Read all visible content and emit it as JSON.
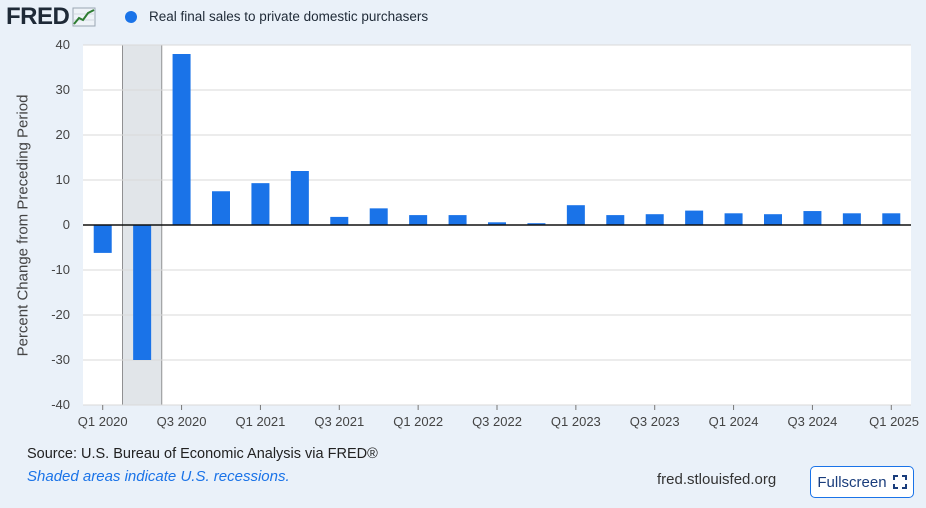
{
  "header": {
    "logo_text": "FRED",
    "logo_icon": "line-chart-icon",
    "legend_label": "Real final sales to private domestic purchasers"
  },
  "colors": {
    "bar": "#1a73e8",
    "recession": "#e1e5e9",
    "background": "#eaf1f9",
    "plot": "#ffffff",
    "grid": "#d9d9d9"
  },
  "footer": {
    "source": "U.S. Bureau of Economic Analysis via FRED®",
    "source_prefix": "Source: ",
    "recession_note": "Shaded areas indicate U.S. recessions.",
    "site": "fred.stlouisfed.org",
    "fullscreen_label": "Fullscreen"
  },
  "chart_data": {
    "type": "bar",
    "title": "",
    "xlabel": "",
    "ylabel": "Percent Change from Preceding Period",
    "ylim": [
      -40,
      40
    ],
    "yticks": [
      40,
      30,
      20,
      10,
      0,
      -10,
      -20,
      -30,
      -40
    ],
    "grid": true,
    "legend": "top-left",
    "x_tick_labels": [
      "Q1 2020",
      "Q3 2020",
      "Q1 2021",
      "Q3 2021",
      "Q1 2022",
      "Q3 2022",
      "Q1 2023",
      "Q3 2023",
      "Q1 2024",
      "Q3 2024",
      "Q1 2025"
    ],
    "recession_periods": [
      [
        "Q2 2020",
        "Q2 2020"
      ]
    ],
    "categories": [
      "Q1 2020",
      "Q2 2020",
      "Q3 2020",
      "Q4 2020",
      "Q1 2021",
      "Q2 2021",
      "Q3 2021",
      "Q4 2021",
      "Q1 2022",
      "Q2 2022",
      "Q3 2022",
      "Q4 2022",
      "Q1 2023",
      "Q2 2023",
      "Q3 2023",
      "Q4 2023",
      "Q1 2024",
      "Q2 2024",
      "Q3 2024",
      "Q4 2024",
      "Q1 2025"
    ],
    "series": [
      {
        "name": "Real final sales to private domestic purchasers",
        "values": [
          -6.2,
          -30.0,
          38.0,
          7.5,
          9.3,
          12.0,
          1.8,
          3.7,
          2.2,
          2.2,
          0.6,
          0.4,
          4.4,
          2.2,
          2.4,
          3.2,
          2.6,
          2.4,
          3.1,
          2.6,
          2.6
        ]
      }
    ]
  }
}
